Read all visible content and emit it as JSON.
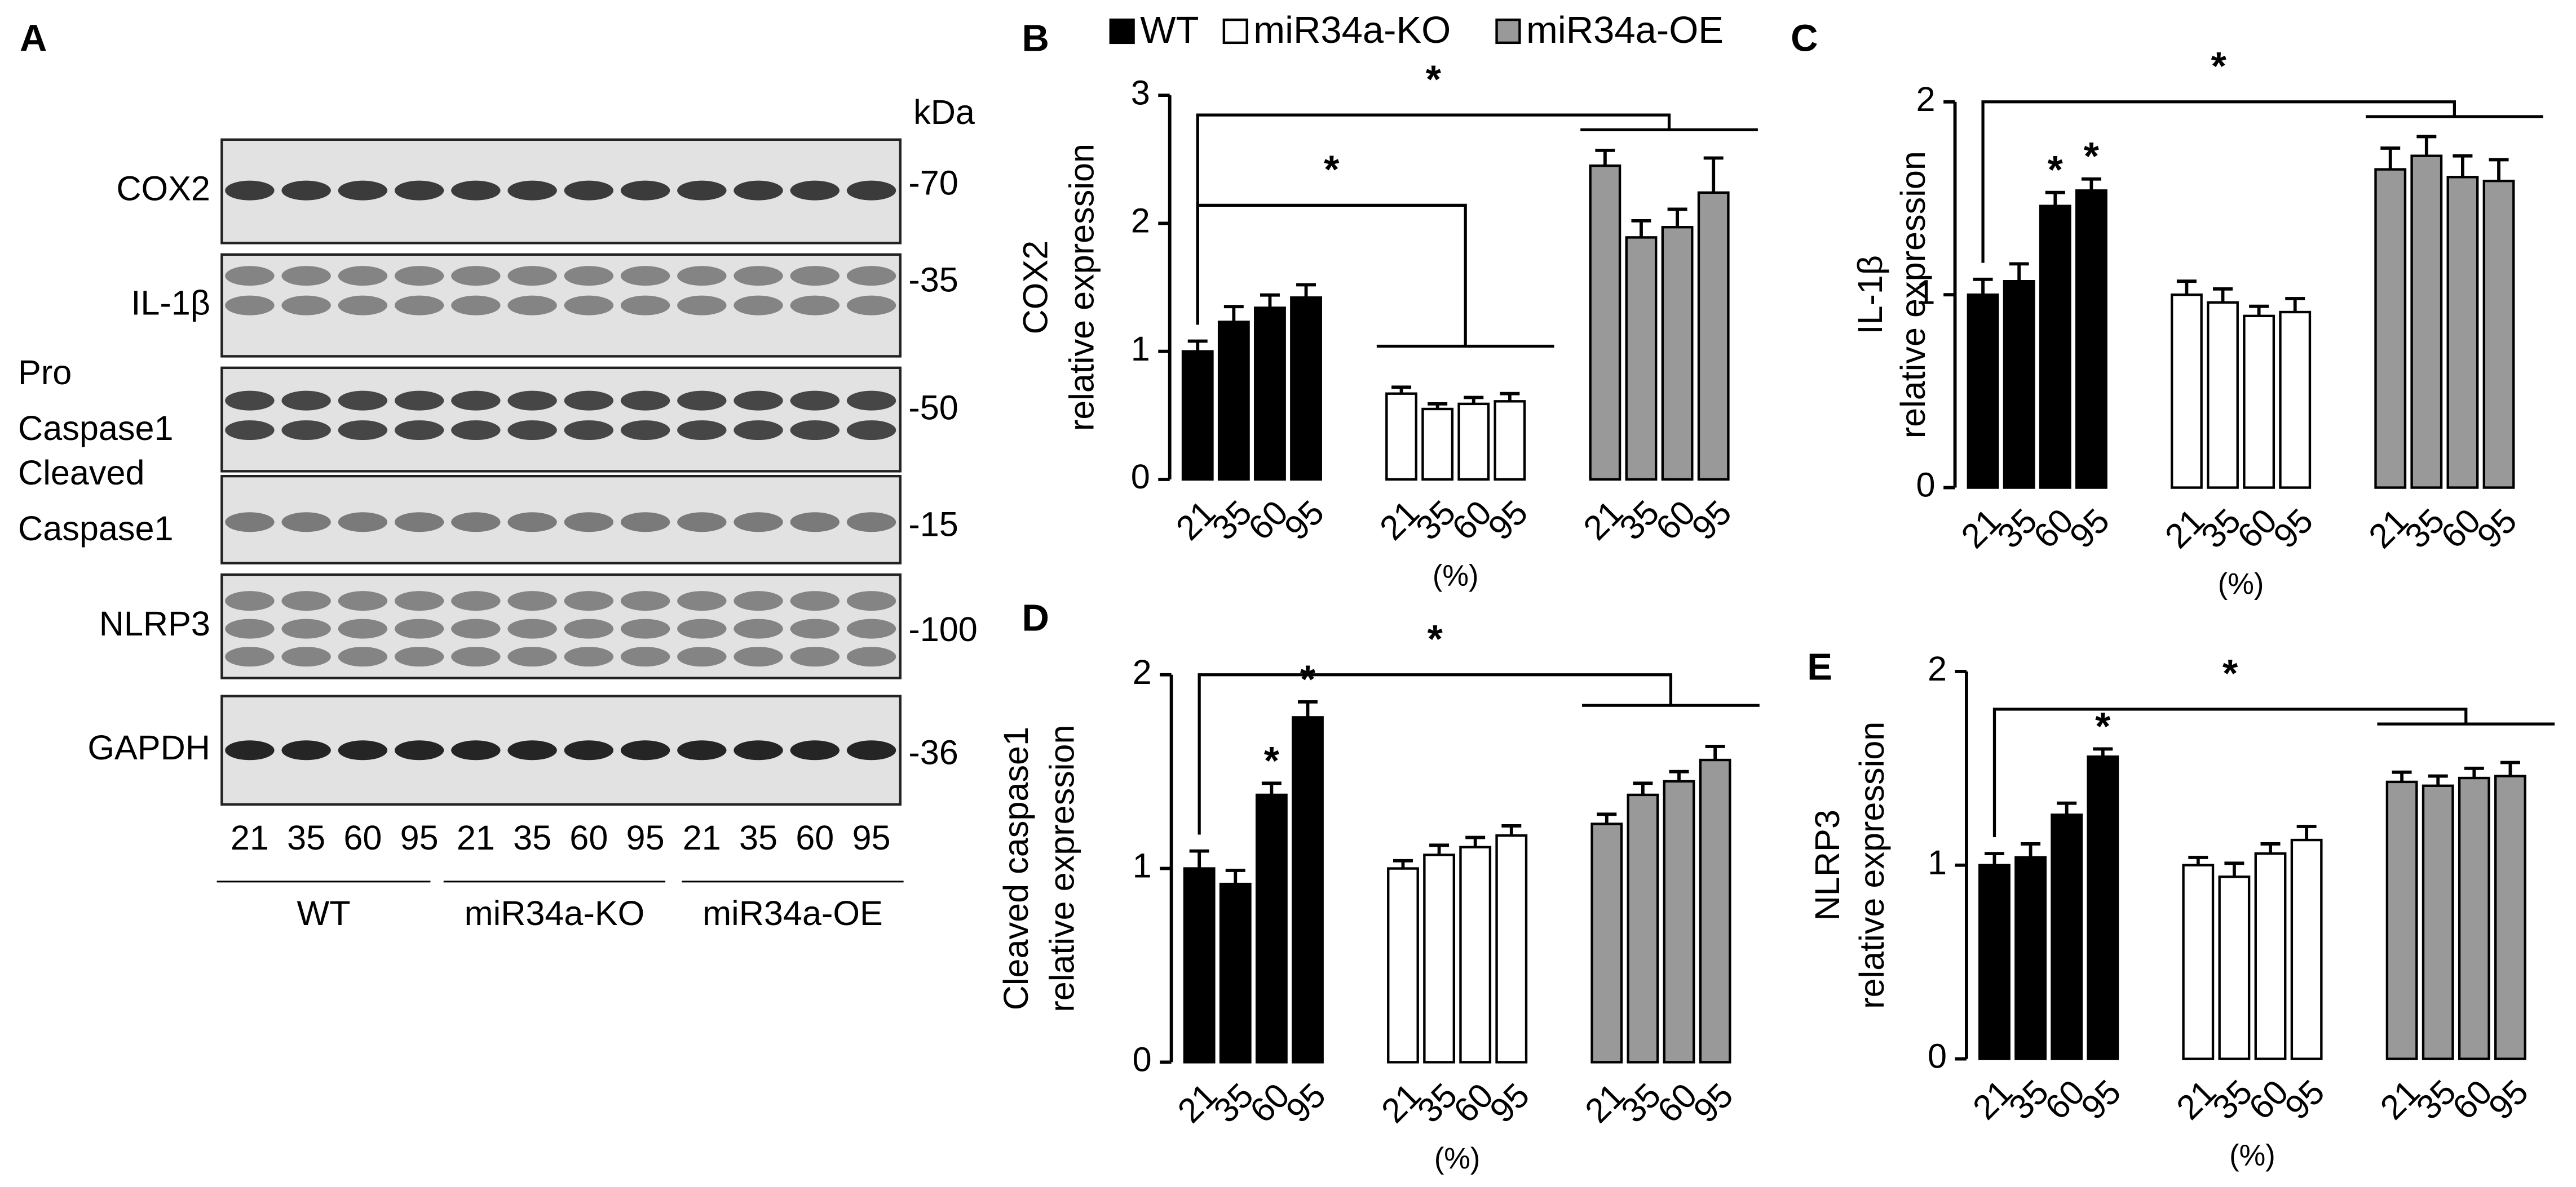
{
  "blot": {
    "panel": "A",
    "unit": "kDa",
    "proteins": [
      {
        "label": [
          "COX2"
        ],
        "kda": "-70"
      },
      {
        "label": [
          "IL-1β"
        ],
        "kda": "-35"
      },
      {
        "label": [
          "Pro",
          "Caspase1"
        ],
        "kda": "-50"
      },
      {
        "label": [
          "Cleaved",
          "Caspase1"
        ],
        "kda": "-15"
      },
      {
        "label": [
          "NLRP3"
        ],
        "kda": "-100"
      },
      {
        "label": [
          "GAPDH"
        ],
        "kda": "-36"
      }
    ],
    "lanes": [
      "21",
      "35",
      "60",
      "95",
      "21",
      "35",
      "60",
      "95",
      "21",
      "35",
      "60",
      "95"
    ],
    "groups": [
      "WT",
      "miR34a-KO",
      "miR34a-OE"
    ]
  },
  "chart_data": [
    {
      "type": "bar",
      "panel": "B",
      "ylabel": [
        "COX2",
        "relative expression"
      ],
      "xlabel": "(%)",
      "legend": true,
      "categories": [
        "21",
        "35",
        "60",
        "95"
      ],
      "ylim": [
        0,
        3
      ],
      "yticks": [
        0,
        1,
        2,
        3
      ],
      "series": [
        {
          "name": "WT",
          "color": "#000000",
          "values": [
            1.0,
            1.23,
            1.34,
            1.42
          ],
          "errors": [
            0.08,
            0.12,
            0.1,
            0.1
          ]
        },
        {
          "name": "miR34a-KO",
          "color": "#ffffff",
          "values": [
            0.67,
            0.55,
            0.59,
            0.61
          ],
          "errors": [
            0.05,
            0.04,
            0.05,
            0.06
          ]
        },
        {
          "name": "miR34a-OE",
          "color": "#999999",
          "values": [
            2.45,
            1.89,
            1.97,
            2.24
          ],
          "errors": [
            0.12,
            0.13,
            0.14,
            0.27
          ]
        }
      ],
      "bar_annotations": [],
      "bracket_annotations": [
        {
          "to": 2,
          "text": "*"
        },
        {
          "to": 1,
          "text": "*"
        }
      ]
    },
    {
      "type": "bar",
      "panel": "C",
      "ylabel": [
        "IL-1β",
        "relative expression"
      ],
      "xlabel": "(%)",
      "legend": false,
      "categories": [
        "21",
        "35",
        "60",
        "95"
      ],
      "ylim": [
        0,
        2
      ],
      "yticks": [
        0,
        1,
        2
      ],
      "series": [
        {
          "name": "WT",
          "color": "#000000",
          "values": [
            1.0,
            1.07,
            1.46,
            1.54
          ],
          "errors": [
            0.08,
            0.09,
            0.07,
            0.06
          ]
        },
        {
          "name": "miR34a-KO",
          "color": "#ffffff",
          "values": [
            1.0,
            0.96,
            0.89,
            0.91
          ],
          "errors": [
            0.07,
            0.07,
            0.05,
            0.07
          ]
        },
        {
          "name": "miR34a-OE",
          "color": "#999999",
          "values": [
            1.65,
            1.72,
            1.61,
            1.59
          ],
          "errors": [
            0.11,
            0.1,
            0.11,
            0.11
          ]
        }
      ],
      "bar_annotations": [
        {
          "series": 0,
          "index": 2,
          "text": "*"
        },
        {
          "series": 0,
          "index": 3,
          "text": "*"
        }
      ],
      "bracket_annotations": [
        {
          "to": 2,
          "text": "*"
        }
      ]
    },
    {
      "type": "bar",
      "panel": "D",
      "ylabel": [
        "Cleaved caspase1",
        "relative expression"
      ],
      "xlabel": "(%)",
      "legend": false,
      "categories": [
        "21",
        "35",
        "60",
        "95"
      ],
      "ylim": [
        0,
        2
      ],
      "yticks": [
        0,
        1,
        2
      ],
      "series": [
        {
          "name": "WT",
          "color": "#000000",
          "values": [
            1.0,
            0.92,
            1.38,
            1.78
          ],
          "errors": [
            0.09,
            0.07,
            0.06,
            0.08
          ]
        },
        {
          "name": "miR34a-KO",
          "color": "#ffffff",
          "values": [
            1.0,
            1.07,
            1.11,
            1.17
          ],
          "errors": [
            0.04,
            0.05,
            0.05,
            0.05
          ]
        },
        {
          "name": "miR34a-OE",
          "color": "#999999",
          "values": [
            1.23,
            1.38,
            1.45,
            1.56
          ],
          "errors": [
            0.05,
            0.06,
            0.05,
            0.07
          ]
        }
      ],
      "bar_annotations": [
        {
          "series": 0,
          "index": 2,
          "text": "*"
        },
        {
          "series": 0,
          "index": 3,
          "text": "*"
        }
      ],
      "bracket_annotations": [
        {
          "to": 2,
          "text": "*"
        }
      ]
    },
    {
      "type": "bar",
      "panel": "E",
      "ylabel": [
        "NLRP3",
        "relative expression"
      ],
      "xlabel": "(%)",
      "legend": false,
      "categories": [
        "21",
        "35",
        "60",
        "95"
      ],
      "ylim": [
        0,
        2
      ],
      "yticks": [
        0,
        1,
        2
      ],
      "series": [
        {
          "name": "WT",
          "color": "#000000",
          "values": [
            1.0,
            1.04,
            1.26,
            1.56
          ],
          "errors": [
            0.06,
            0.07,
            0.06,
            0.04
          ]
        },
        {
          "name": "miR34a-KO",
          "color": "#ffffff",
          "values": [
            1.0,
            0.94,
            1.06,
            1.13
          ],
          "errors": [
            0.04,
            0.07,
            0.05,
            0.07
          ]
        },
        {
          "name": "miR34a-OE",
          "color": "#999999",
          "values": [
            1.43,
            1.41,
            1.45,
            1.46
          ],
          "errors": [
            0.05,
            0.05,
            0.05,
            0.07
          ]
        }
      ],
      "bar_annotations": [
        {
          "series": 0,
          "index": 3,
          "text": "*"
        }
      ],
      "bracket_annotations": [
        {
          "to": 2,
          "text": "*"
        }
      ]
    }
  ]
}
